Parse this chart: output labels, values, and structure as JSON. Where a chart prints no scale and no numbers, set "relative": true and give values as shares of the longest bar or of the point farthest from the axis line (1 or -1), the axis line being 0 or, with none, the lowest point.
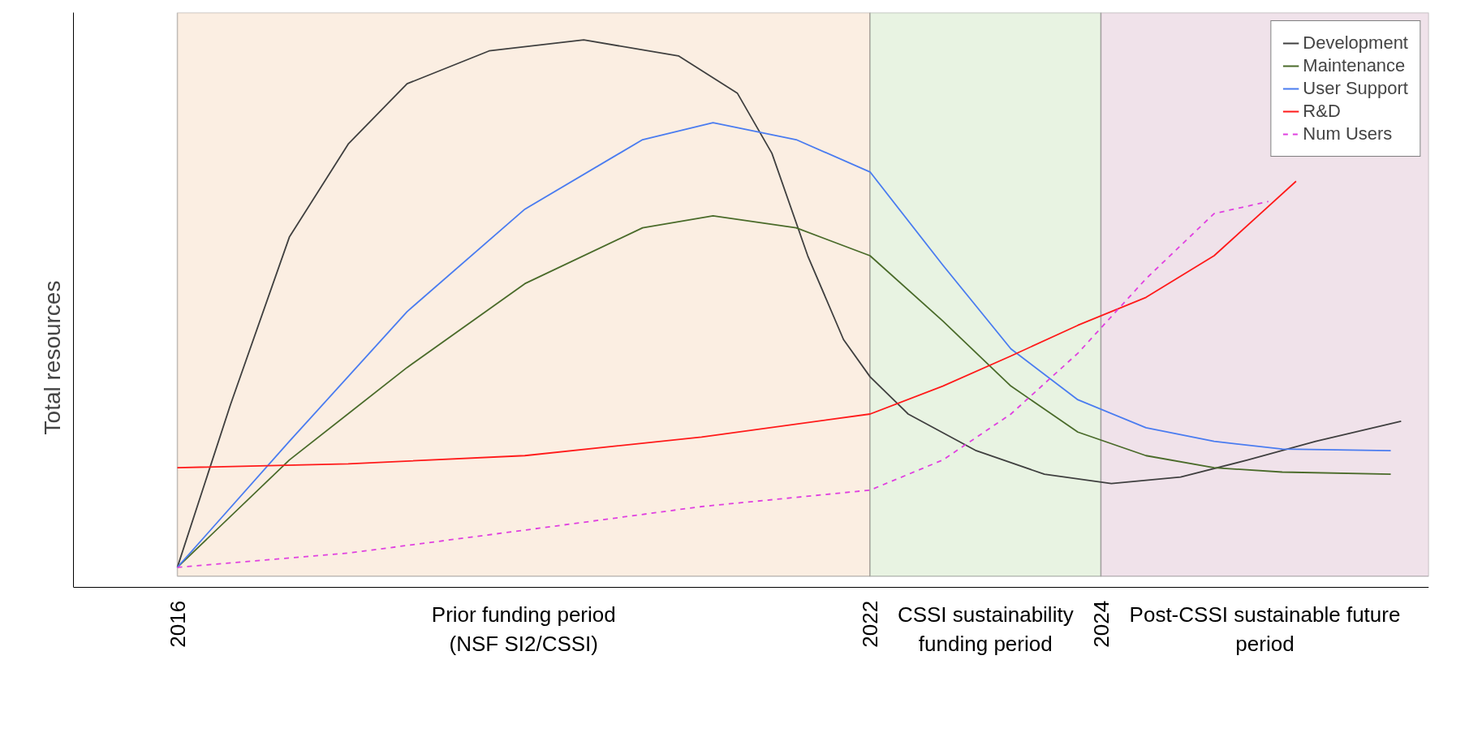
{
  "chart_data": {
    "type": "line",
    "relative": true,
    "ylabel": "Total resources",
    "xlim": [
      2015.1,
      2026.84
    ],
    "xticks": [
      2016,
      2022,
      2024
    ],
    "legend": "top right",
    "grid": false,
    "marker": "none",
    "series": [
      {
        "name": "Development",
        "color": "#404040",
        "x": [
          2016.0,
          2016.46,
          2016.97,
          2017.48,
          2017.99,
          2018.7,
          2019.52,
          2020.34,
          2020.85,
          2021.15,
          2021.46,
          2021.77,
          2022.0,
          2022.33,
          2022.92,
          2023.51,
          2024.09,
          2024.69,
          2025.27,
          2025.86,
          2026.6
        ],
        "values": [
          0.037,
          0.334,
          0.64,
          0.81,
          0.92,
          0.98,
          1.0,
          0.971,
          0.903,
          0.793,
          0.606,
          0.453,
          0.385,
          0.317,
          0.25,
          0.207,
          0.19,
          0.202,
          0.233,
          0.267,
          0.304
        ]
      },
      {
        "name": "Maintenance",
        "color": "#4a6b2a",
        "x": [
          2016.0,
          2016.97,
          2017.99,
          2019.01,
          2020.03,
          2020.64,
          2021.36,
          2022.0,
          2022.63,
          2023.22,
          2023.8,
          2024.39,
          2024.98,
          2025.57,
          2026.51
        ],
        "values": [
          0.037,
          0.233,
          0.402,
          0.555,
          0.657,
          0.679,
          0.657,
          0.606,
          0.487,
          0.368,
          0.284,
          0.241,
          0.219,
          0.211,
          0.207
        ]
      },
      {
        "name": "User Support",
        "color": "#4a7cf0",
        "x": [
          2016.0,
          2016.97,
          2017.99,
          2019.01,
          2020.03,
          2020.64,
          2021.36,
          2022.0,
          2022.63,
          2023.22,
          2023.8,
          2024.39,
          2024.98,
          2025.57,
          2026.51
        ],
        "values": [
          0.037,
          0.267,
          0.504,
          0.691,
          0.818,
          0.849,
          0.818,
          0.759,
          0.589,
          0.436,
          0.343,
          0.292,
          0.267,
          0.253,
          0.25
        ]
      },
      {
        "name": "R&D",
        "color": "#ff1a1a",
        "x": [
          2016.0,
          2017.48,
          2019.01,
          2020.54,
          2022.0,
          2022.63,
          2023.22,
          2023.8,
          2024.39,
          2024.98,
          2025.69
        ],
        "values": [
          0.219,
          0.226,
          0.241,
          0.275,
          0.317,
          0.368,
          0.423,
          0.479,
          0.53,
          0.606,
          0.742
        ]
      },
      {
        "name": "Num Users",
        "color": "#e040e0",
        "line_style": "dashed",
        "x": [
          2016.0,
          2017.48,
          2019.01,
          2020.54,
          2022.0,
          2022.63,
          2023.22,
          2023.8,
          2024.39,
          2024.98,
          2025.45
        ],
        "values": [
          0.037,
          0.063,
          0.105,
          0.148,
          0.178,
          0.233,
          0.317,
          0.428,
          0.564,
          0.683,
          0.705
        ]
      }
    ],
    "bands": [
      {
        "axis": "x",
        "from": 2016,
        "to": 2022,
        "label": "Prior funding period\n(NSF SI2/CSSI)",
        "color": "#fbeee2"
      },
      {
        "axis": "x",
        "from": 2022,
        "to": 2024,
        "label": "CSSI sustainability\nfunding period",
        "color": "#e8f3e2"
      },
      {
        "axis": "x",
        "from": 2024,
        "to": 2026.84,
        "label": "Post-CSSI sustainable future\nperiod",
        "color": "#f0e2ea"
      }
    ]
  }
}
